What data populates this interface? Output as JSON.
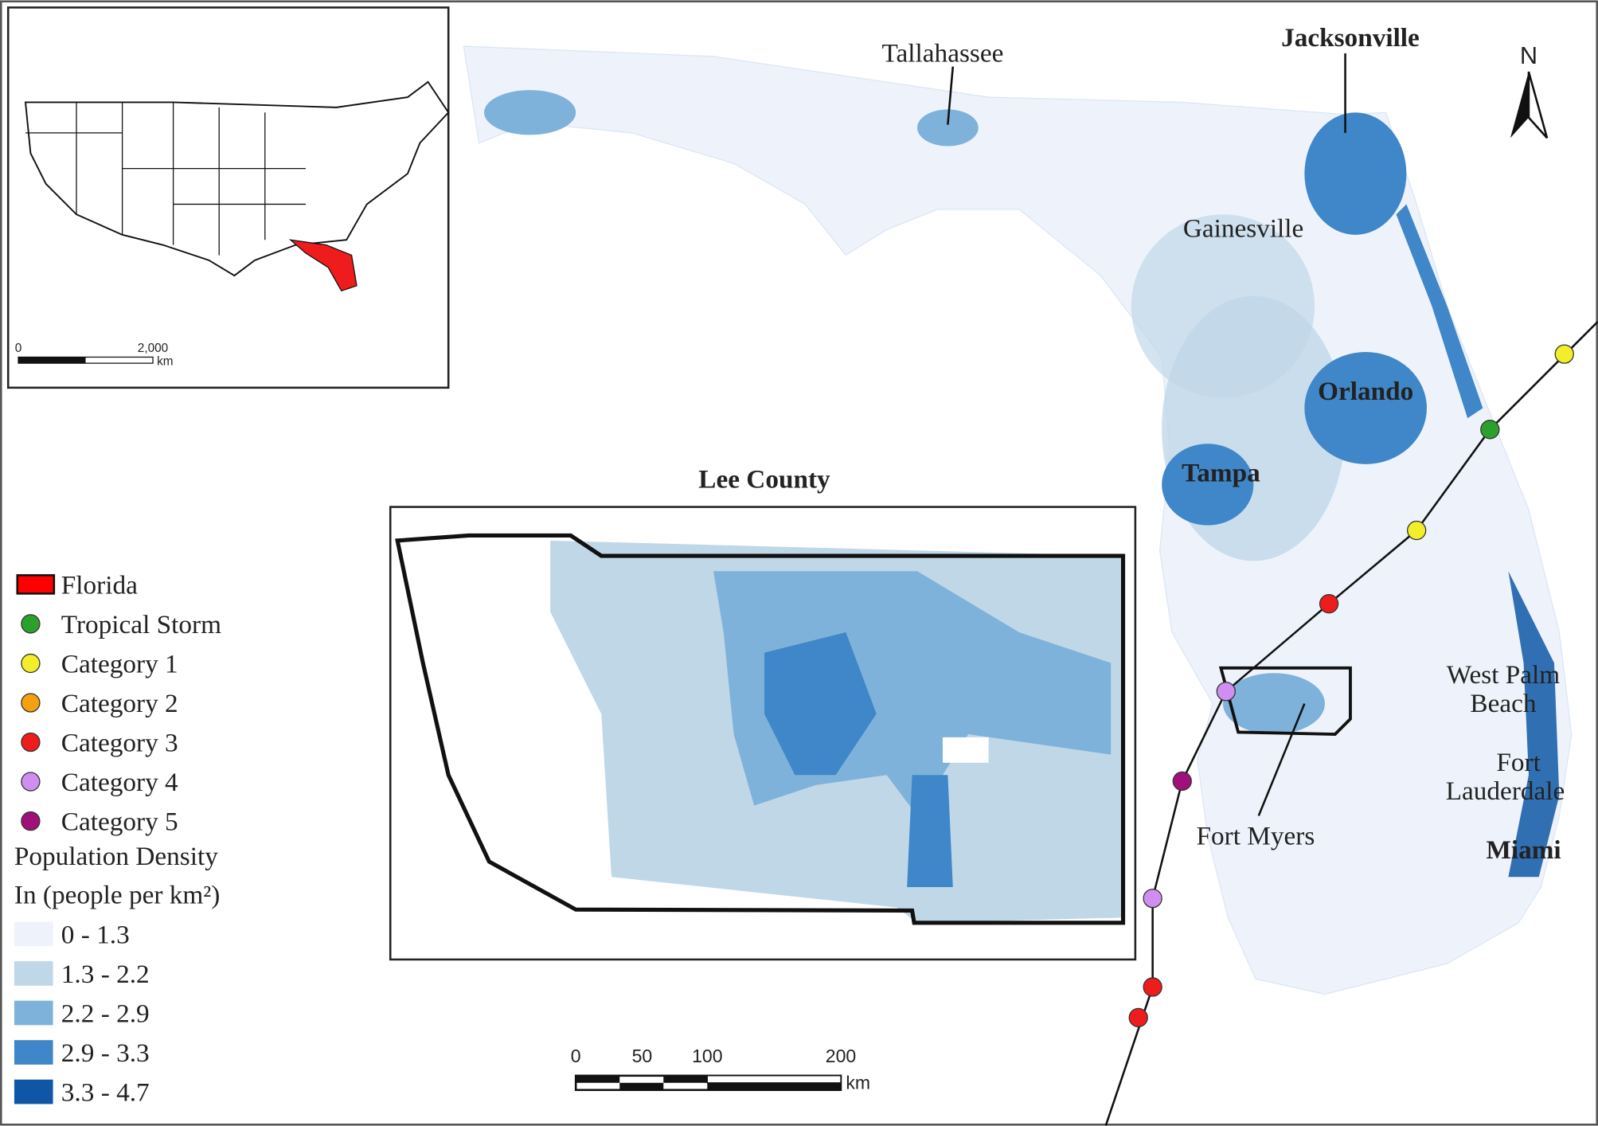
{
  "cities": {
    "tallahassee": "Tallahassee",
    "jacksonville": "Jacksonville",
    "gainesville": "Gainesville",
    "orlando": "Orlando",
    "tampa": "Tampa",
    "west_palm_beach": [
      "West Palm",
      "Beach"
    ],
    "fort_lauderdale": [
      "Fort",
      "Lauderdale"
    ],
    "miami": "Miami",
    "fort_myers": "Fort Myers"
  },
  "north_arrow": "N",
  "inset_title": "Lee County",
  "us_scale": {
    "ticks": [
      "0",
      "2,000"
    ],
    "unit": "km"
  },
  "scale": {
    "ticks": [
      "0",
      "50",
      "100",
      "200"
    ],
    "unit": "km"
  },
  "legend": {
    "items": [
      {
        "label": "Florida",
        "color": "#ff0000"
      },
      {
        "label": "Tropical Storm",
        "color": "#2ca02c"
      },
      {
        "label": "Category 1",
        "color": "#f2ee2a"
      },
      {
        "label": "Category 2",
        "color": "#f5a00f"
      },
      {
        "label": "Category 3",
        "color": "#ee1c1c"
      },
      {
        "label": "Category 4",
        "color": "#cf8ef0"
      },
      {
        "label": "Category 5",
        "color": "#a0107a"
      }
    ],
    "density_title": [
      "Population Density",
      "In (people per km²)"
    ],
    "classes": [
      {
        "label": "0 - 1.3",
        "color": "#eef3fb"
      },
      {
        "label": "1.3 - 2.2",
        "color": "#c0d7e8"
      },
      {
        "label": "2.2 - 2.9",
        "color": "#7fb2da"
      },
      {
        "label": "2.9 - 3.3",
        "color": "#3f87c8"
      },
      {
        "label": "3.3 - 4.7",
        "color": "#0f57a6"
      }
    ]
  }
}
